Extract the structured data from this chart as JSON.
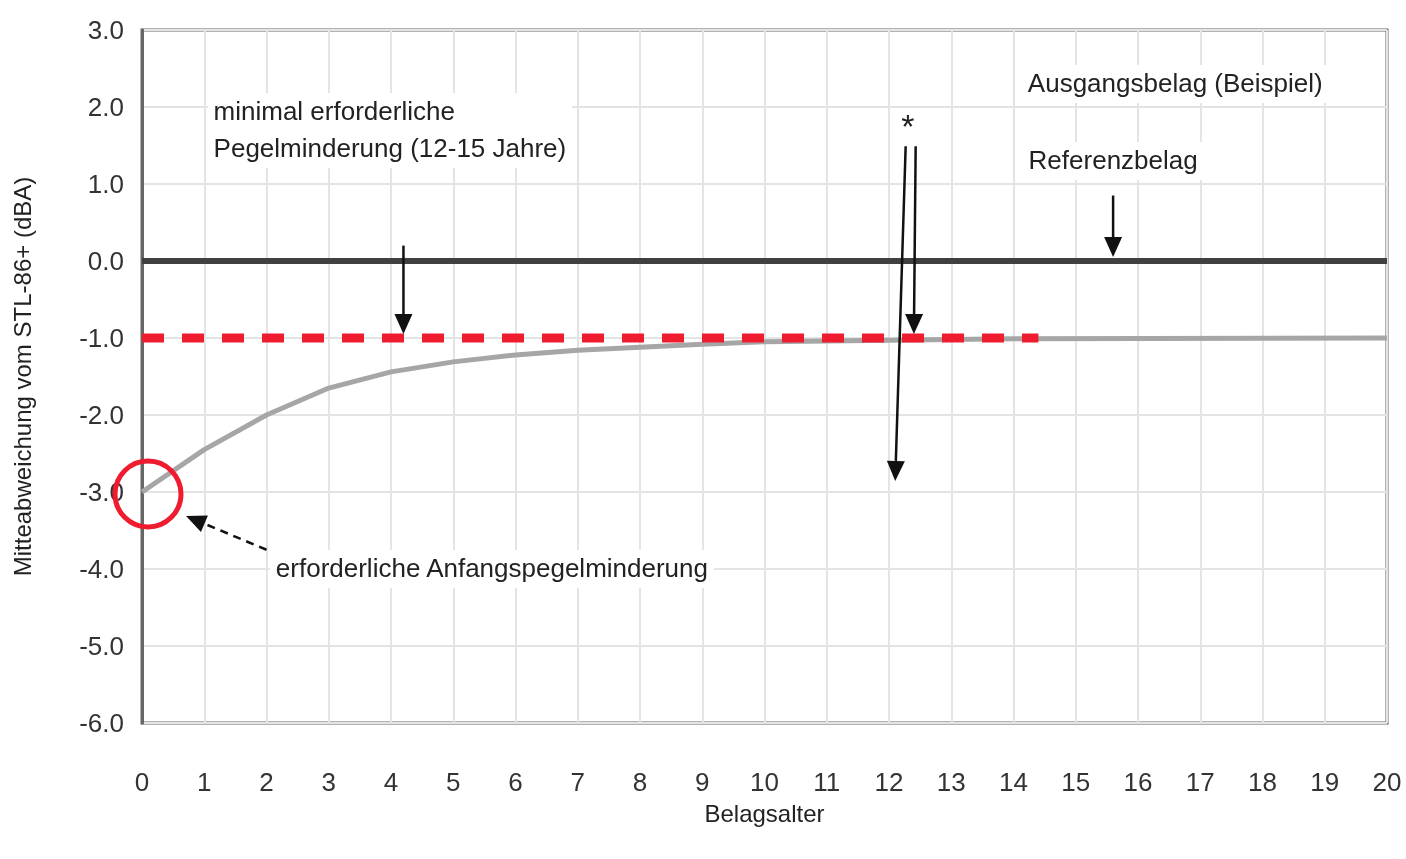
{
  "chart_data": {
    "type": "line",
    "xlabel": "Belagsalter",
    "ylabel": "Mitteabweichung vom STL-86+ (dBA)",
    "xlim": [
      0,
      20
    ],
    "xticks": [
      0,
      1,
      2,
      3,
      4,
      5,
      6,
      7,
      8,
      9,
      10,
      11,
      12,
      13,
      14,
      15,
      16,
      17,
      18,
      19,
      20
    ],
    "ylim": [
      -6,
      3
    ],
    "yticks": [
      {
        "value": 3,
        "label": "3.0"
      },
      {
        "value": 2,
        "label": "2.0"
      },
      {
        "value": 1,
        "label": "1.0"
      },
      {
        "value": 0,
        "label": "0.0"
      },
      {
        "value": -1,
        "label": "-1.0"
      },
      {
        "value": -2,
        "label": "-2.0"
      },
      {
        "value": -3,
        "label": "-3.0"
      },
      {
        "value": -4,
        "label": "-4.0"
      },
      {
        "value": -5,
        "label": "-5.0"
      },
      {
        "value": -6,
        "label": "-6.0"
      }
    ],
    "grid": true,
    "marker": "none",
    "series": [
      {
        "color": "#a6a6a6",
        "line_style": "solid",
        "x": [
          0,
          1,
          2,
          3,
          4,
          5,
          6,
          7,
          8,
          9,
          10,
          12,
          14,
          20
        ],
        "values": [
          -3.0,
          -2.45,
          -2.0,
          -1.65,
          -1.44,
          -1.31,
          -1.22,
          -1.16,
          -1.12,
          -1.08,
          -1.05,
          -1.03,
          -1.01,
          -1.0
        ]
      },
      {
        "color": "#404040",
        "line_style": "solid",
        "x": [
          0,
          20
        ],
        "values": [
          0,
          0
        ]
      },
      {
        "color": "#ee1c2e",
        "line_style": "dashed",
        "x": [
          0,
          14.4
        ],
        "values": [
          -1,
          -1
        ]
      }
    ],
    "annotations": [
      "Ausgangsbelag (Beispiel)",
      "Referenzbelag",
      "minimal erforderliche\nPegelminderung (12-15 Jahre)",
      "erforderliche Anfangspegelminderung",
      "*"
    ]
  }
}
